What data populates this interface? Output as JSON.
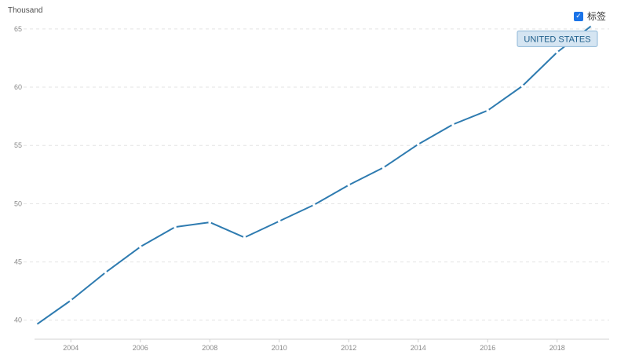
{
  "unit_label": "Thousand",
  "toggle": {
    "label": "标签",
    "checked": true,
    "check_glyph": "✓"
  },
  "chart_data": {
    "type": "line",
    "x": [
      2003,
      2004,
      2005,
      2006,
      2007,
      2008,
      2009,
      2010,
      2011,
      2012,
      2013,
      2014,
      2015,
      2016,
      2017,
      2018,
      2019
    ],
    "series": [
      {
        "name": "UNITED STATES",
        "color": "#2e7bb0",
        "values": [
          39.6,
          41.7,
          44.1,
          46.3,
          48.0,
          48.4,
          47.1,
          48.5,
          49.9,
          51.6,
          53.1,
          55.1,
          56.8,
          58.0,
          60.1,
          63.0,
          65.3
        ]
      }
    ],
    "x_ticks": [
      "2004",
      "2006",
      "2008",
      "2010",
      "2012",
      "2014",
      "2016",
      "2018"
    ],
    "y_ticks": [
      "40",
      "45",
      "50",
      "55",
      "60",
      "65"
    ],
    "ylim": [
      38.5,
      66
    ],
    "xlim": [
      2003,
      2019
    ],
    "grid": "horizontal-dashed",
    "series_label_placement": "end-of-line"
  }
}
